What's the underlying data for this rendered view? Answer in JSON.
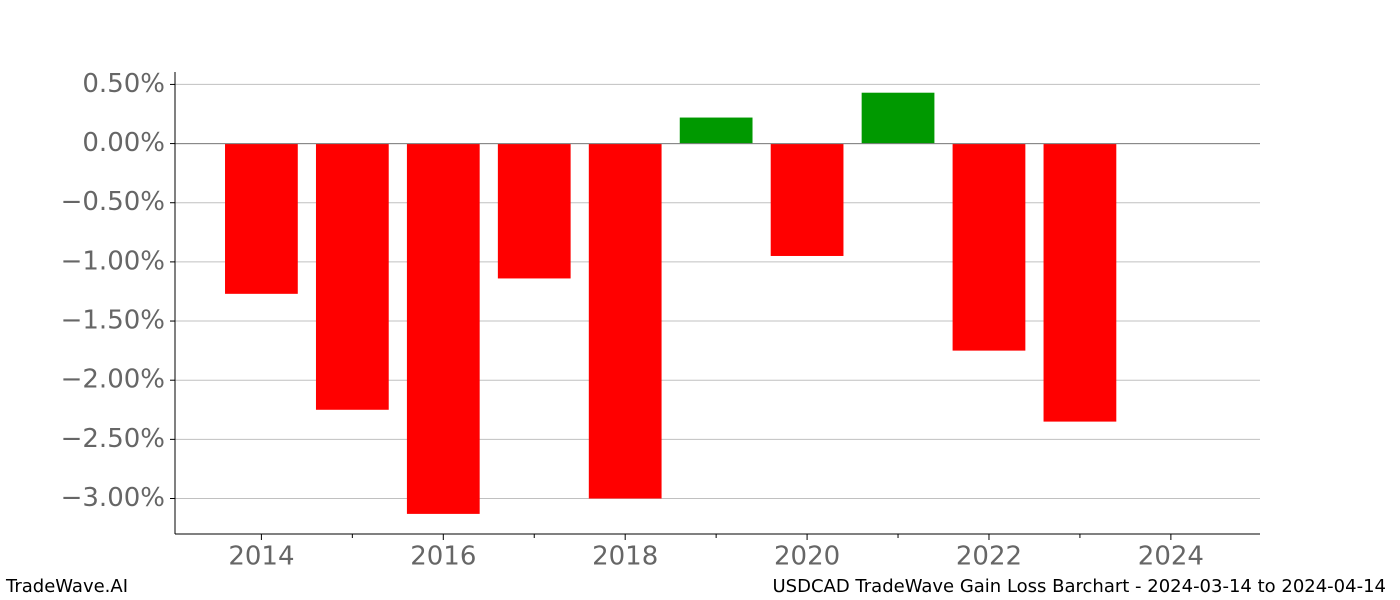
{
  "chart_data": {
    "type": "bar",
    "title": "USDCAD TradeWave Gain Loss Barchart - 2024-03-14 to 2024-04-14",
    "source": "TradeWave.AI",
    "x": [
      2014,
      2015,
      2016,
      2017,
      2018,
      2019,
      2020,
      2021,
      2022,
      2023
    ],
    "values": [
      -1.27,
      -2.25,
      -3.13,
      -1.14,
      -3.0,
      0.22,
      -0.95,
      0.43,
      -1.75,
      -2.35
    ],
    "positive_color": "#009900",
    "negative_color": "#ff0000",
    "bar_width": 0.8,
    "xlim": [
      2013.05,
      2024.98
    ],
    "xticks": [
      2014,
      2016,
      2018,
      2020,
      2022,
      2024
    ],
    "xminorticks": [
      2015,
      2017,
      2019,
      2021,
      2023
    ],
    "ylim": [
      -3.3,
      0.605
    ],
    "yticks": [
      {
        "value": 0.5,
        "label": "0.50%"
      },
      {
        "value": 0,
        "label": "0.00%"
      },
      {
        "value": -0.5,
        "label": "−0.50%"
      },
      {
        "value": -1,
        "label": "−1.00%"
      },
      {
        "value": -1.5,
        "label": "−1.50%"
      },
      {
        "value": -2,
        "label": "−2.00%"
      },
      {
        "value": -2.5,
        "label": "−2.50%"
      },
      {
        "value": -3,
        "label": "−3.00%"
      }
    ],
    "grid": true
  }
}
